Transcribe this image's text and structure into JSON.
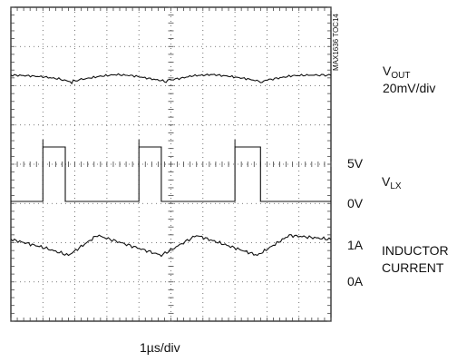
{
  "chart_data": {
    "type": "line",
    "title": "",
    "xlabel": "1µs/div",
    "ylabel": "",
    "grid": true,
    "grid_divisions": {
      "x": 10,
      "y": 8
    },
    "series": [
      {
        "name": "VOUT",
        "label": "V",
        "label_sub": "OUT",
        "scale": "20mV/div",
        "x": [
          0,
          0.5,
          1.0,
          1.5,
          1.85,
          1.9,
          1.95,
          2.2,
          2.8,
          3.3,
          3.8,
          4.3,
          4.8,
          4.85,
          4.9,
          5.2,
          5.7,
          6.3,
          6.8,
          7.4,
          7.8,
          7.85,
          7.9,
          8.3,
          8.8,
          9.3,
          10
        ],
        "y": [
          1.1,
          1.05,
          0.95,
          0.75,
          0.5,
          0.35,
          0.6,
          0.7,
          1.0,
          1.15,
          1.05,
          0.8,
          0.55,
          0.4,
          0.65,
          0.75,
          1.05,
          1.15,
          1.0,
          0.75,
          0.5,
          0.35,
          0.6,
          0.8,
          1.05,
          1.1,
          1.1
        ]
      },
      {
        "name": "VLX",
        "label": "V",
        "label_sub": "LX",
        "levels": [
          "5V",
          "0V"
        ],
        "x": [
          0,
          1.0,
          1.0,
          1.7,
          1.7,
          4.0,
          4.0,
          4.7,
          4.7,
          7.0,
          7.0,
          7.8,
          7.8,
          10
        ],
        "y": [
          0,
          0,
          5,
          5,
          0,
          0,
          5,
          5,
          0,
          0,
          5,
          5,
          0,
          0
        ]
      },
      {
        "name": "INDUCTOR CURRENT",
        "label": "INDUCTOR",
        "label2": "CURRENT",
        "levels": [
          "1A",
          "0A"
        ],
        "x": [
          0,
          1.0,
          1.8,
          2.7,
          4.7,
          5.8,
          7.7,
          8.7,
          10
        ],
        "y": [
          1.05,
          0.85,
          0.65,
          1.15,
          0.65,
          1.15,
          0.65,
          1.15,
          1.05
        ]
      }
    ],
    "annotation": "MAX1636 TOC14"
  }
}
